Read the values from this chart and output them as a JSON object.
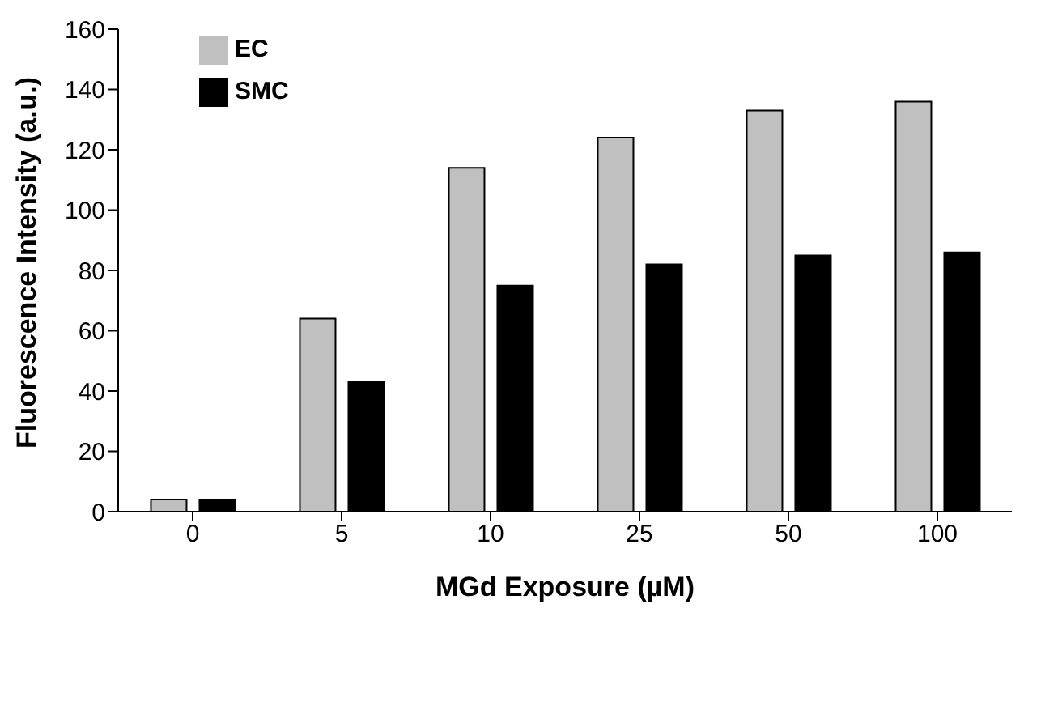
{
  "chart_data": {
    "type": "bar",
    "xlabel": "MGd Exposure (µM)",
    "ylabel": "Fluorescence Intensity (a.u.)",
    "categories": [
      "0",
      "5",
      "10",
      "25",
      "50",
      "100"
    ],
    "series": [
      {
        "name": "EC",
        "color": "#c0c0c0",
        "values": [
          4,
          64,
          114,
          124,
          133,
          136
        ]
      },
      {
        "name": "SMC",
        "color": "#000000",
        "values": [
          4,
          43,
          75,
          82,
          85,
          86
        ]
      }
    ],
    "ylim": [
      0,
      160
    ],
    "yticks": [
      0,
      20,
      40,
      60,
      80,
      100,
      120,
      140,
      160
    ],
    "grid": false,
    "legend": "top left"
  }
}
